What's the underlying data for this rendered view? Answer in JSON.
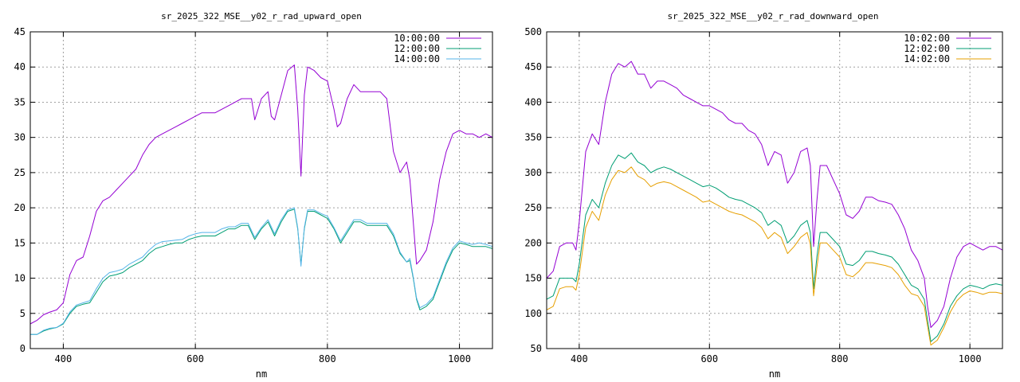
{
  "chart_data": [
    {
      "type": "line",
      "title": "sr_2025_322_MSE__y02_r_rad_upward_open",
      "xlabel": "nm",
      "ylabel": "",
      "xlim": [
        350,
        1050
      ],
      "ylim": [
        0,
        45
      ],
      "xticks": [
        400,
        600,
        800,
        1000
      ],
      "yticks": [
        0,
        5,
        10,
        15,
        20,
        25,
        30,
        35,
        40,
        45
      ],
      "grid": true,
      "legend_position": "top-right",
      "series": [
        {
          "name": "10:00:00",
          "color": "#9400d3",
          "x": [
            350,
            360,
            370,
            380,
            390,
            400,
            410,
            420,
            430,
            440,
            450,
            460,
            470,
            480,
            490,
            500,
            510,
            520,
            530,
            540,
            550,
            560,
            570,
            580,
            590,
            600,
            610,
            620,
            630,
            640,
            650,
            660,
            670,
            680,
            685,
            690,
            700,
            710,
            715,
            720,
            730,
            740,
            750,
            755,
            760,
            765,
            770,
            780,
            790,
            800,
            810,
            815,
            820,
            830,
            840,
            850,
            860,
            870,
            880,
            890,
            900,
            910,
            920,
            925,
            930,
            935,
            940,
            950,
            960,
            970,
            980,
            990,
            1000,
            1010,
            1020,
            1030,
            1040,
            1050
          ],
          "y": [
            3.5,
            4,
            4.8,
            5.2,
            5.5,
            6.5,
            10.5,
            12.5,
            13,
            16,
            19.5,
            21,
            21.5,
            22.5,
            23.5,
            24.5,
            25.5,
            27.5,
            29,
            30,
            30.5,
            31,
            31.5,
            32,
            32.5,
            33,
            33.5,
            33.5,
            33.5,
            34,
            34.5,
            35,
            35.5,
            35.5,
            35.5,
            32.5,
            35.5,
            36.5,
            33,
            32.5,
            36,
            39.5,
            40.3,
            34,
            24.5,
            36,
            40,
            39.5,
            38.5,
            38,
            34,
            31.5,
            32,
            35.5,
            37.5,
            36.5,
            36.5,
            36.5,
            36.5,
            35.5,
            28,
            25,
            26.5,
            24,
            18,
            12,
            12.5,
            14,
            18,
            24,
            28,
            30.5,
            31,
            30.5,
            30.5,
            30,
            30.5,
            30
          ]
        },
        {
          "name": "12:00:00",
          "color": "#009e73",
          "x": [
            350,
            360,
            370,
            380,
            390,
            400,
            410,
            420,
            430,
            440,
            450,
            460,
            470,
            480,
            490,
            500,
            510,
            520,
            530,
            540,
            550,
            560,
            570,
            580,
            590,
            600,
            610,
            620,
            630,
            640,
            650,
            660,
            670,
            680,
            690,
            700,
            710,
            720,
            730,
            740,
            750,
            755,
            760,
            765,
            770,
            780,
            790,
            800,
            810,
            820,
            830,
            840,
            850,
            860,
            870,
            880,
            890,
            900,
            910,
            920,
            925,
            930,
            935,
            940,
            950,
            960,
            970,
            980,
            990,
            1000,
            1010,
            1020,
            1030,
            1040,
            1050
          ],
          "y": [
            2,
            2,
            2.5,
            2.8,
            3,
            3.5,
            5,
            6,
            6.3,
            6.5,
            8,
            9.5,
            10.3,
            10.5,
            10.8,
            11.5,
            12,
            12.5,
            13.5,
            14.2,
            14.5,
            14.8,
            15,
            15,
            15.5,
            15.8,
            16,
            16,
            16,
            16.5,
            17,
            17,
            17.5,
            17.5,
            15.5,
            17,
            18,
            16,
            18,
            19.5,
            19.8,
            17,
            12,
            17,
            19.5,
            19.5,
            19,
            18.5,
            17,
            15,
            16.5,
            18,
            18,
            17.5,
            17.5,
            17.5,
            17.5,
            16,
            13.5,
            12.3,
            12.5,
            10,
            7,
            5.5,
            6,
            7,
            9.5,
            12,
            14,
            15,
            14.8,
            14.5,
            14.5,
            14.5,
            14.2
          ]
        },
        {
          "name": "14:00:00",
          "color": "#56b4e9",
          "x": [
            350,
            360,
            370,
            380,
            390,
            400,
            410,
            420,
            430,
            440,
            450,
            460,
            470,
            480,
            490,
            500,
            510,
            520,
            530,
            540,
            550,
            560,
            570,
            580,
            590,
            600,
            610,
            620,
            630,
            640,
            650,
            660,
            670,
            680,
            690,
            700,
            710,
            720,
            730,
            740,
            750,
            755,
            760,
            765,
            770,
            780,
            790,
            800,
            810,
            820,
            830,
            840,
            850,
            860,
            870,
            880,
            890,
            900,
            910,
            920,
            925,
            930,
            935,
            940,
            950,
            960,
            970,
            980,
            990,
            1000,
            1010,
            1020,
            1030,
            1040,
            1050
          ],
          "y": [
            2,
            2,
            2.6,
            2.9,
            3,
            3.6,
            5.2,
            6.2,
            6.5,
            6.8,
            8.5,
            10,
            10.8,
            11,
            11.3,
            12,
            12.5,
            13,
            14,
            14.8,
            15.2,
            15.3,
            15.4,
            15.5,
            16,
            16.3,
            16.5,
            16.5,
            16.5,
            17,
            17.3,
            17.3,
            17.8,
            17.8,
            15.8,
            17.2,
            18.3,
            16.3,
            18.3,
            19.7,
            20,
            17.2,
            11.7,
            17.2,
            19.7,
            19.7,
            19.2,
            18.8,
            17.2,
            15.3,
            16.8,
            18.3,
            18.3,
            17.8,
            17.8,
            17.8,
            17.8,
            16.3,
            13.7,
            12.3,
            12.8,
            10.2,
            7.2,
            5.8,
            6.3,
            7.3,
            9.8,
            12.3,
            14.3,
            15.3,
            15,
            14.8,
            15,
            14.8,
            14.5
          ]
        }
      ]
    },
    {
      "type": "line",
      "title": "sr_2025_322_MSE__y02_r_rad_downward_open",
      "xlabel": "nm",
      "ylabel": "",
      "xlim": [
        350,
        1050
      ],
      "ylim": [
        50,
        500
      ],
      "xticks": [
        400,
        600,
        800,
        1000
      ],
      "yticks": [
        50,
        100,
        150,
        200,
        250,
        300,
        350,
        400,
        450,
        500
      ],
      "grid": true,
      "legend_position": "top-right",
      "series": [
        {
          "name": "10:02:00",
          "color": "#9400d3",
          "x": [
            350,
            360,
            370,
            380,
            390,
            395,
            400,
            410,
            420,
            430,
            440,
            450,
            460,
            470,
            480,
            490,
            500,
            510,
            520,
            530,
            540,
            550,
            560,
            570,
            580,
            590,
            600,
            610,
            620,
            630,
            640,
            650,
            660,
            670,
            680,
            690,
            700,
            710,
            720,
            730,
            740,
            750,
            755,
            760,
            765,
            770,
            780,
            790,
            800,
            810,
            820,
            830,
            840,
            850,
            860,
            870,
            880,
            890,
            900,
            910,
            920,
            930,
            935,
            940,
            950,
            960,
            970,
            980,
            990,
            1000,
            1010,
            1020,
            1030,
            1040,
            1050
          ],
          "y": [
            150,
            160,
            195,
            200,
            200,
            190,
            230,
            330,
            355,
            340,
            400,
            440,
            455,
            450,
            458,
            440,
            440,
            420,
            430,
            430,
            425,
            420,
            410,
            405,
            400,
            395,
            395,
            390,
            385,
            375,
            370,
            370,
            360,
            355,
            340,
            310,
            330,
            325,
            285,
            300,
            330,
            335,
            310,
            195,
            260,
            310,
            310,
            290,
            270,
            240,
            235,
            245,
            265,
            265,
            260,
            258,
            255,
            240,
            220,
            190,
            175,
            150,
            110,
            80,
            90,
            110,
            150,
            180,
            195,
            200,
            195,
            190,
            195,
            195,
            190
          ]
        },
        {
          "name": "12:02:00",
          "color": "#009e73",
          "x": [
            350,
            360,
            370,
            380,
            390,
            395,
            400,
            410,
            420,
            430,
            440,
            450,
            460,
            470,
            480,
            490,
            500,
            510,
            520,
            530,
            540,
            550,
            560,
            570,
            580,
            590,
            600,
            610,
            620,
            630,
            640,
            650,
            660,
            670,
            680,
            690,
            700,
            710,
            720,
            730,
            740,
            750,
            755,
            760,
            765,
            770,
            780,
            790,
            800,
            810,
            820,
            830,
            840,
            850,
            860,
            870,
            880,
            890,
            900,
            910,
            920,
            930,
            935,
            940,
            950,
            960,
            970,
            980,
            990,
            1000,
            1010,
            1020,
            1030,
            1040,
            1050
          ],
          "y": [
            120,
            125,
            150,
            150,
            150,
            145,
            170,
            240,
            262,
            250,
            285,
            310,
            325,
            320,
            328,
            315,
            310,
            300,
            305,
            308,
            305,
            300,
            295,
            290,
            285,
            280,
            282,
            278,
            272,
            265,
            262,
            260,
            255,
            250,
            243,
            225,
            232,
            225,
            200,
            210,
            225,
            232,
            215,
            135,
            180,
            215,
            215,
            205,
            195,
            170,
            168,
            175,
            188,
            188,
            185,
            183,
            180,
            170,
            155,
            140,
            135,
            120,
            90,
            60,
            68,
            85,
            110,
            125,
            135,
            140,
            138,
            135,
            140,
            142,
            140
          ]
        },
        {
          "name": "14:02:00",
          "color": "#e69f00",
          "x": [
            350,
            360,
            370,
            380,
            390,
            395,
            400,
            410,
            420,
            430,
            440,
            450,
            460,
            470,
            480,
            490,
            500,
            510,
            520,
            530,
            540,
            550,
            560,
            570,
            580,
            590,
            600,
            610,
            620,
            630,
            640,
            650,
            660,
            670,
            680,
            690,
            700,
            710,
            720,
            730,
            740,
            750,
            755,
            760,
            765,
            770,
            780,
            790,
            800,
            810,
            820,
            830,
            840,
            850,
            860,
            870,
            880,
            890,
            900,
            910,
            920,
            930,
            935,
            940,
            950,
            960,
            970,
            980,
            990,
            1000,
            1010,
            1020,
            1030,
            1040,
            1050
          ],
          "y": [
            105,
            110,
            135,
            138,
            138,
            133,
            155,
            222,
            245,
            232,
            268,
            290,
            303,
            300,
            308,
            295,
            290,
            280,
            285,
            287,
            285,
            280,
            275,
            270,
            265,
            258,
            260,
            255,
            250,
            245,
            242,
            240,
            235,
            230,
            222,
            206,
            215,
            208,
            185,
            195,
            208,
            215,
            198,
            125,
            165,
            200,
            200,
            190,
            180,
            155,
            152,
            160,
            172,
            172,
            170,
            168,
            165,
            155,
            140,
            128,
            125,
            110,
            82,
            55,
            62,
            80,
            102,
            118,
            127,
            132,
            130,
            127,
            130,
            130,
            128
          ]
        }
      ]
    }
  ]
}
